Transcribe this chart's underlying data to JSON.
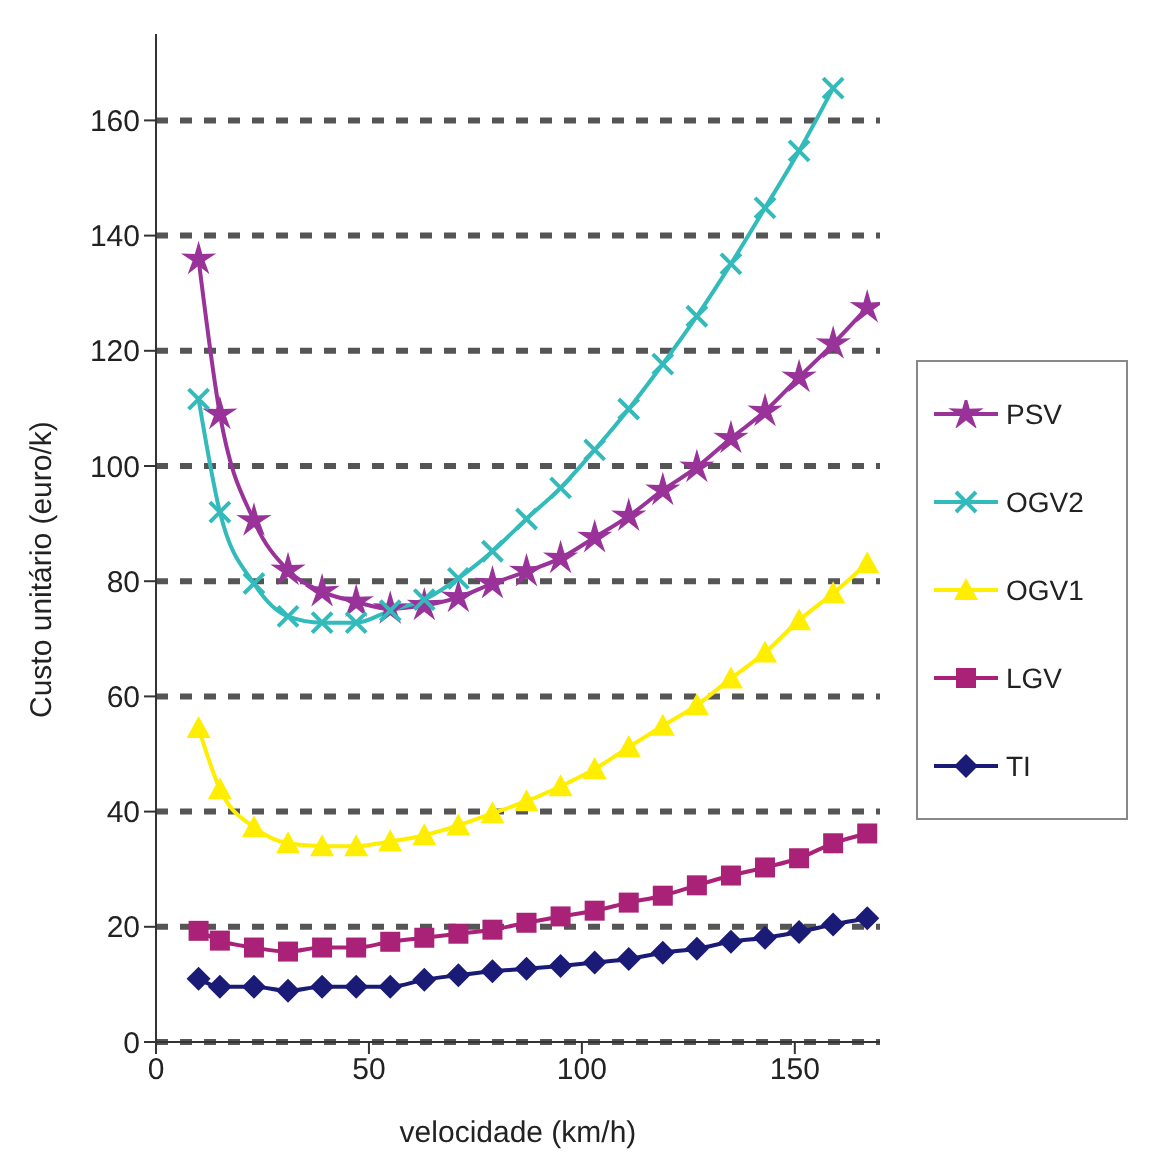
{
  "chart_data": {
    "type": "line",
    "xlabel": "velocidade (km/h)",
    "ylabel": "Custo unitário (euro/k)",
    "x": [
      10,
      15,
      23,
      31,
      39,
      47,
      55,
      63,
      71,
      79,
      87,
      95,
      103,
      111,
      119,
      127,
      135,
      143,
      151,
      159,
      167
    ],
    "series": [
      {
        "name": "PSV",
        "color": "#993399",
        "marker": "star",
        "values": [
          135.9,
          109,
          90.5,
          81.9,
          78.2,
          76.4,
          75.2,
          75.8,
          77.2,
          79.6,
          81.7,
          84,
          87.6,
          91.3,
          95.8,
          99.8,
          104.8,
          109.5,
          115.4,
          121.2,
          127.5
        ]
      },
      {
        "name": "OGV2",
        "color": "#33bbbb",
        "marker": "cross",
        "values": [
          111.6,
          92,
          79.6,
          73.9,
          72.8,
          72.8,
          74.9,
          76.8,
          80.5,
          85.2,
          90.8,
          96.2,
          102.8,
          109.9,
          117.7,
          126,
          135.1,
          144.8,
          154.7,
          165.6,
          null
        ]
      },
      {
        "name": "OGV1",
        "color": "#ffee00",
        "marker": "triangle",
        "values": [
          54.5,
          43.9,
          37.3,
          34.5,
          34,
          34,
          34.8,
          35.9,
          37.6,
          39.7,
          41.8,
          44.4,
          47.4,
          51.2,
          54.9,
          58.5,
          63.1,
          67.6,
          73.2,
          77.9,
          83.1
        ]
      },
      {
        "name": "LGV",
        "color": "#aa2277",
        "marker": "square",
        "values": [
          19.3,
          17.6,
          16.4,
          15.7,
          16.4,
          16.4,
          17.4,
          18.1,
          18.8,
          19.5,
          20.7,
          21.8,
          22.8,
          24.2,
          25.4,
          27.2,
          28.9,
          30.3,
          31.9,
          34.5,
          36.2
        ]
      },
      {
        "name": "TI",
        "color": "#1a1a77",
        "marker": "diamond",
        "values": [
          11,
          9.6,
          9.6,
          8.9,
          9.6,
          9.6,
          9.6,
          10.8,
          11.6,
          12.3,
          12.7,
          13.2,
          13.8,
          14.4,
          15.5,
          16.2,
          17.4,
          18.1,
          19.1,
          20.4,
          21.5
        ]
      }
    ],
    "xlim": [
      0,
      170
    ],
    "xticks": [
      0,
      50,
      100,
      150
    ],
    "ylim": [
      0,
      175
    ],
    "yticks": [
      0,
      20,
      40,
      60,
      80,
      100,
      120,
      140,
      160
    ],
    "grid": "y",
    "line_style": "solid",
    "legend": "right"
  }
}
